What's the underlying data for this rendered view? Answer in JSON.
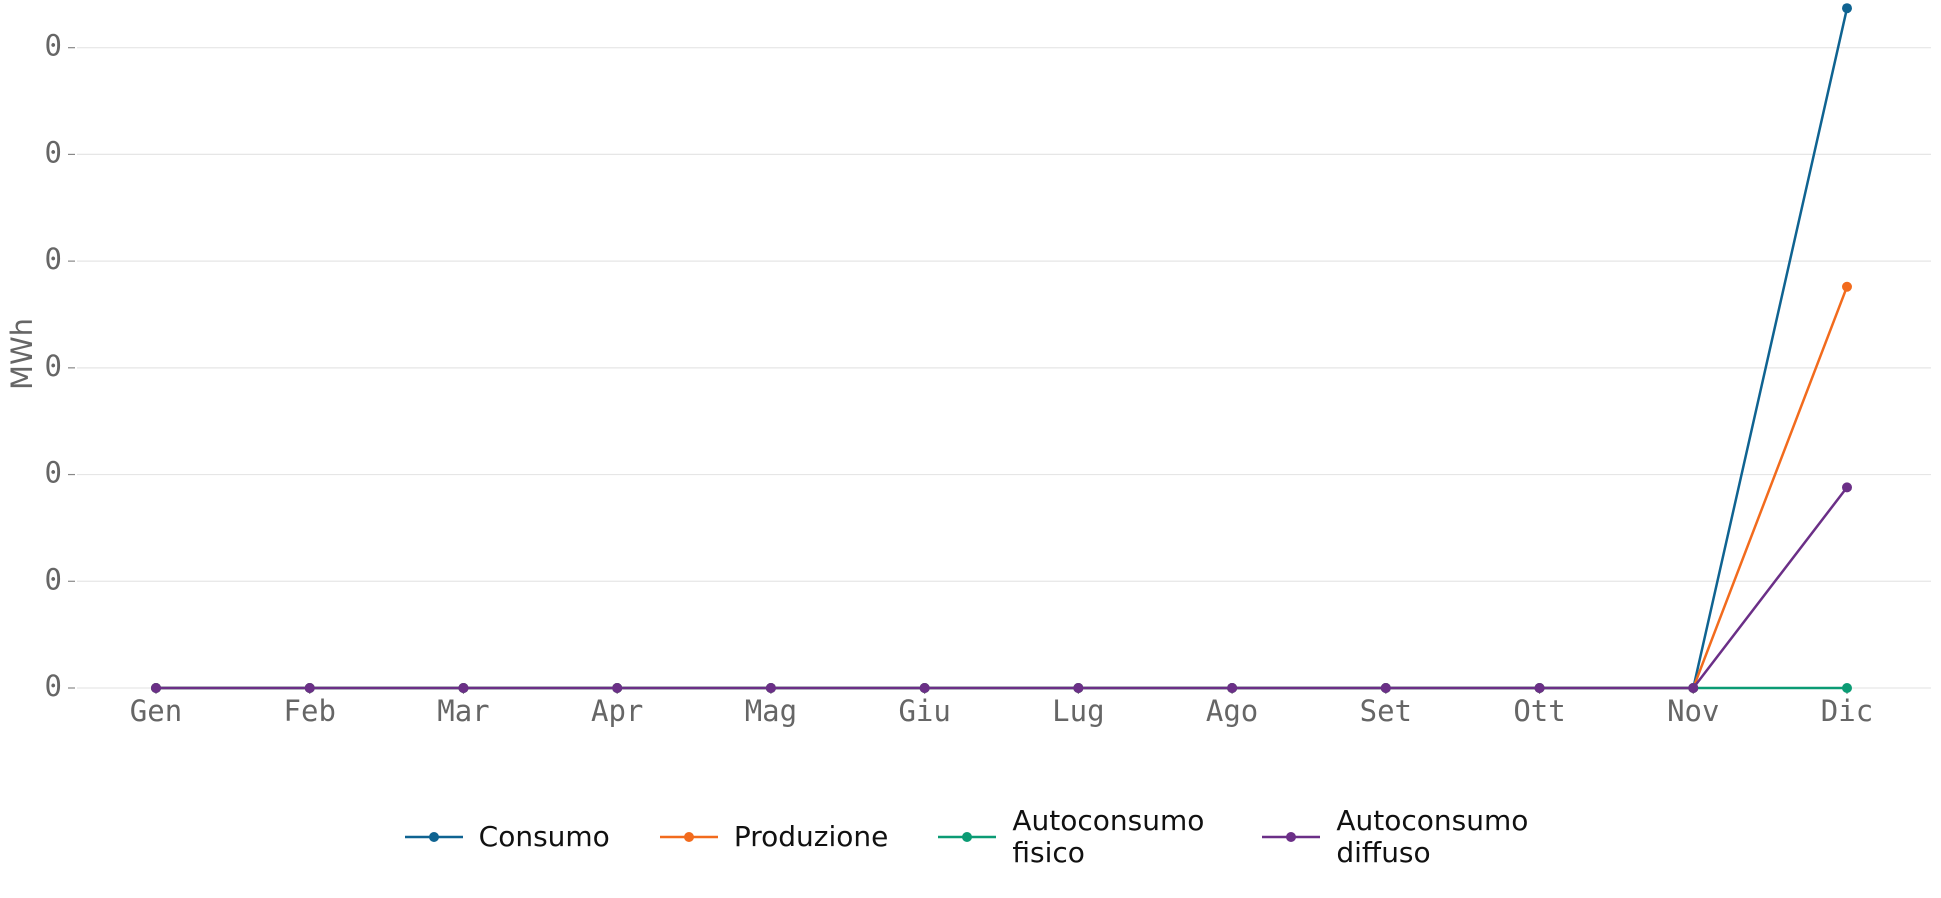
{
  "chart_data": {
    "type": "line",
    "y_label": "MWh",
    "categories": [
      "Gen",
      "Feb",
      "Mar",
      "Apr",
      "Mag",
      "Giu",
      "Lug",
      "Ago",
      "Set",
      "Ott",
      "Nov",
      "Dic"
    ],
    "series": [
      {
        "name": "Consumo",
        "color": "#0f6391",
        "values": [
          0,
          0,
          0,
          0,
          0,
          0,
          0,
          0,
          0,
          0,
          0,
          0.637
        ]
      },
      {
        "name": "Produzione",
        "color": "#f26b1d",
        "values": [
          0,
          0,
          0,
          0,
          0,
          0,
          0,
          0,
          0,
          0,
          0,
          0.376
        ]
      },
      {
        "name": "Autoconsumo fisico",
        "color": "#0b9b74",
        "values": [
          0,
          0,
          0,
          0,
          0,
          0,
          0,
          0,
          0,
          0,
          0,
          0
        ]
      },
      {
        "name": "Autoconsumo diffuso",
        "color": "#6b2f87",
        "values": [
          0,
          0,
          0,
          0,
          0,
          0,
          0,
          0,
          0,
          0,
          0,
          0.188
        ]
      }
    ],
    "ylim": [
      0,
      0.64
    ],
    "yticks": [
      {
        "value": 0,
        "label": "0"
      },
      {
        "value": 0.1,
        "label": "0"
      },
      {
        "value": 0.2,
        "label": "0"
      },
      {
        "value": 0.3,
        "label": "0"
      },
      {
        "value": 0.4,
        "label": "0"
      },
      {
        "value": 0.5,
        "label": "0"
      },
      {
        "value": 0.6,
        "label": "0"
      }
    ],
    "grid": true
  }
}
